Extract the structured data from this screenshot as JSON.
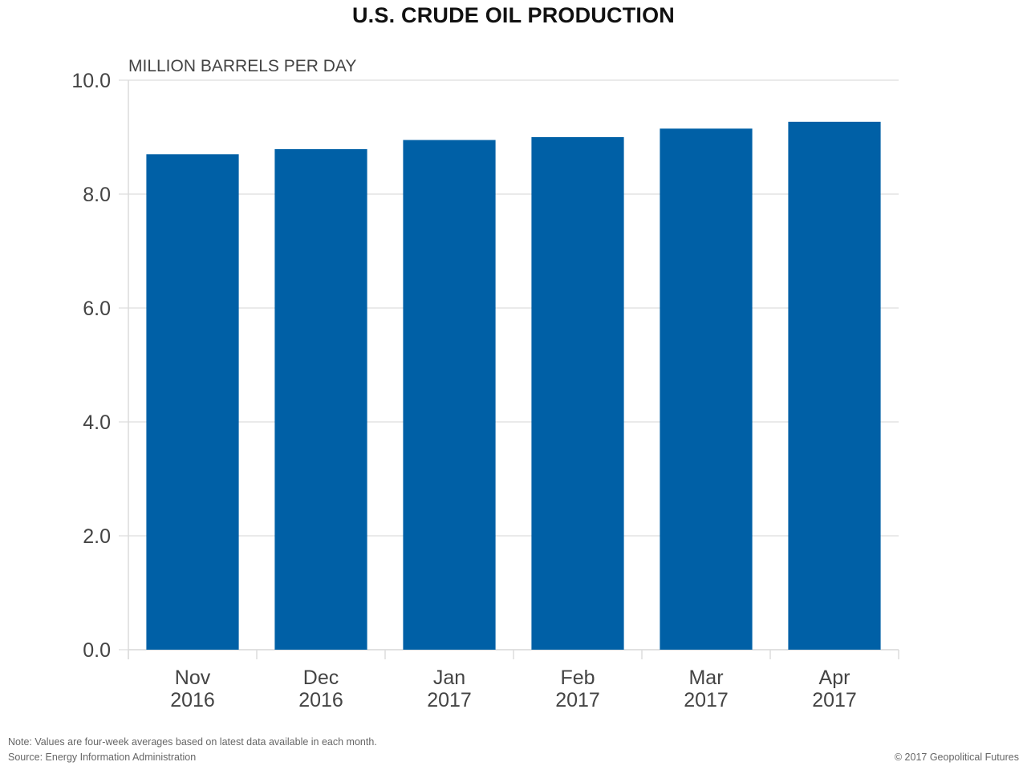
{
  "chart_data": {
    "type": "bar",
    "title": "U.S. CRUDE OIL PRODUCTION",
    "ylabel": "MILLION BARRELS PER DAY",
    "xlabel": "",
    "categories": [
      [
        "Nov",
        "2016"
      ],
      [
        "Dec",
        "2016"
      ],
      [
        "Jan",
        "2017"
      ],
      [
        "Feb",
        "2017"
      ],
      [
        "Mar",
        "2017"
      ],
      [
        "Apr",
        "2017"
      ]
    ],
    "values": [
      8.7,
      8.79,
      8.95,
      9.0,
      9.15,
      9.27
    ],
    "ylim": [
      0,
      10
    ],
    "yticks": [
      "0.0",
      "2.0",
      "4.0",
      "6.0",
      "8.0",
      "10.0"
    ],
    "grid": true,
    "bar_color": "#0060a6"
  },
  "notes": {
    "note": "Note: Values are four-week averages based on latest data available in each month.",
    "source": "Source: Energy Information Administration",
    "copyright": "© 2017 Geopolitical Futures"
  }
}
